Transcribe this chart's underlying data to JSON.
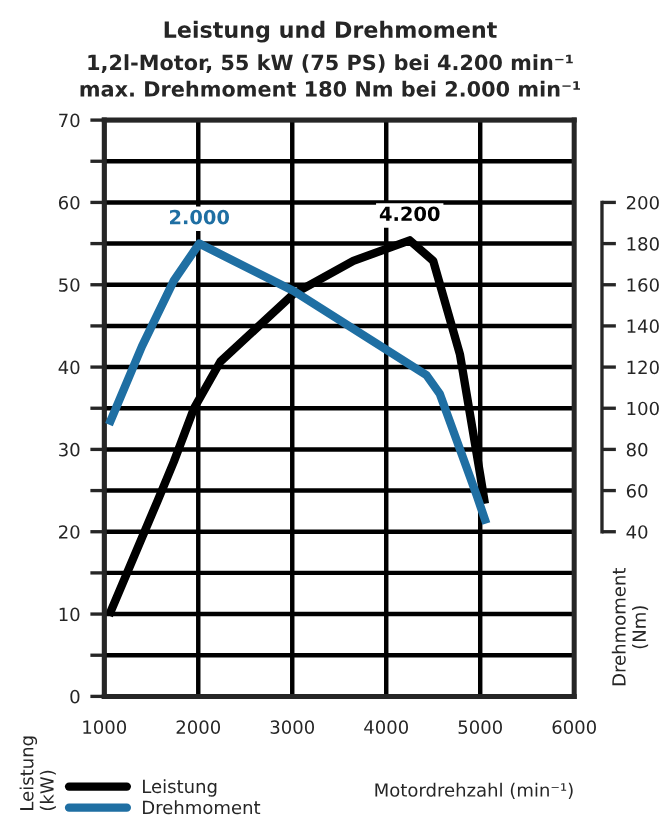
{
  "chart_data": {
    "type": "line",
    "title": "Leistung und Drehmoment",
    "subtitle": "1,2l-Motor, 55 kW (75 PS) bei 4.200 min⁻¹\nmax. Drehmoment 180 Nm bei 2.000 min⁻¹",
    "xlabel": "Motordrehzahl (min⁻¹)",
    "ylabel": "Leistung\n(kW)",
    "y2label": "Drehmoment\n(Nm)",
    "series": [
      {
        "name": "Leistung",
        "color": "#000000",
        "x": [
          1050,
          1565,
          1740,
          1955,
          2238,
          3015,
          3650,
          4250,
          4500,
          4785,
          5000,
          5050
        ],
        "values": [
          9.8,
          23.7,
          28.5,
          35,
          40.7,
          48.9,
          52.9,
          55.4,
          52.9,
          41.5,
          26.9,
          23.4
        ]
      },
      {
        "name": "Drehmoment",
        "color": "#1f6fa3",
        "axis": "y2",
        "x": [
          1050,
          1400,
          1740,
          2010,
          3015,
          4430,
          4570,
          4960,
          5065
        ],
        "values": [
          92,
          130,
          162,
          180,
          157,
          116,
          107,
          58,
          44
        ]
      }
    ],
    "annotations": [
      {
        "text": "4.200",
        "x": 4250,
        "y": 55.4
      },
      "2.000"
    ],
    "xlim": [
      1000,
      6000
    ],
    "xticks": [
      1000,
      2000,
      3000,
      4000,
      5000,
      6000
    ],
    "ylim": [
      0,
      70
    ],
    "yticks": [
      0,
      {
        "value": 5,
        "label": null
      },
      10,
      {
        "value": 15,
        "label": null
      },
      20,
      {
        "value": 25,
        "label": null
      },
      30,
      {
        "value": 35,
        "label": null
      },
      40,
      {
        "value": 45,
        "label": null
      },
      50,
      {
        "value": 55,
        "label": null
      },
      60,
      {
        "value": 65,
        "label": null
      },
      70
    ],
    "y2lim": [
      -40,
      240
    ],
    "y2ticks": [
      40,
      60,
      80,
      100,
      120,
      140,
      160,
      180,
      200
    ],
    "grid": true,
    "legend": "bottom left",
    "marker": "none",
    "line_style": "solid"
  }
}
